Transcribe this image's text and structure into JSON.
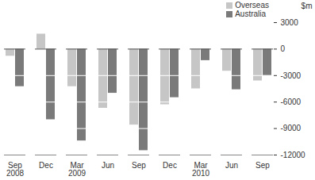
{
  "chart_data": {
    "type": "bar",
    "categories": [
      "Sep 2008",
      "Dec",
      "Mar 2009",
      "Jun",
      "Sep",
      "Dec",
      "Mar 2010",
      "Jun",
      "Sep"
    ],
    "series": [
      {
        "name": "Overseas",
        "color": "#c6c6c6",
        "values": [
          -800,
          1700,
          -4250,
          -6700,
          -8600,
          -6300,
          -4500,
          -2500,
          -3600
        ]
      },
      {
        "name": "Australia",
        "color": "#7a7a7a",
        "values": [
          -4250,
          -8000,
          -10400,
          -5000,
          -11500,
          -5500,
          -1300,
          -4600,
          -3000
        ]
      }
    ],
    "y_label": "$m",
    "ylim": [
      -12000,
      3000
    ],
    "yticks": [
      -12000,
      -9000,
      -6000,
      -3000,
      0,
      3000
    ],
    "grid": true,
    "legend": "top-right"
  }
}
